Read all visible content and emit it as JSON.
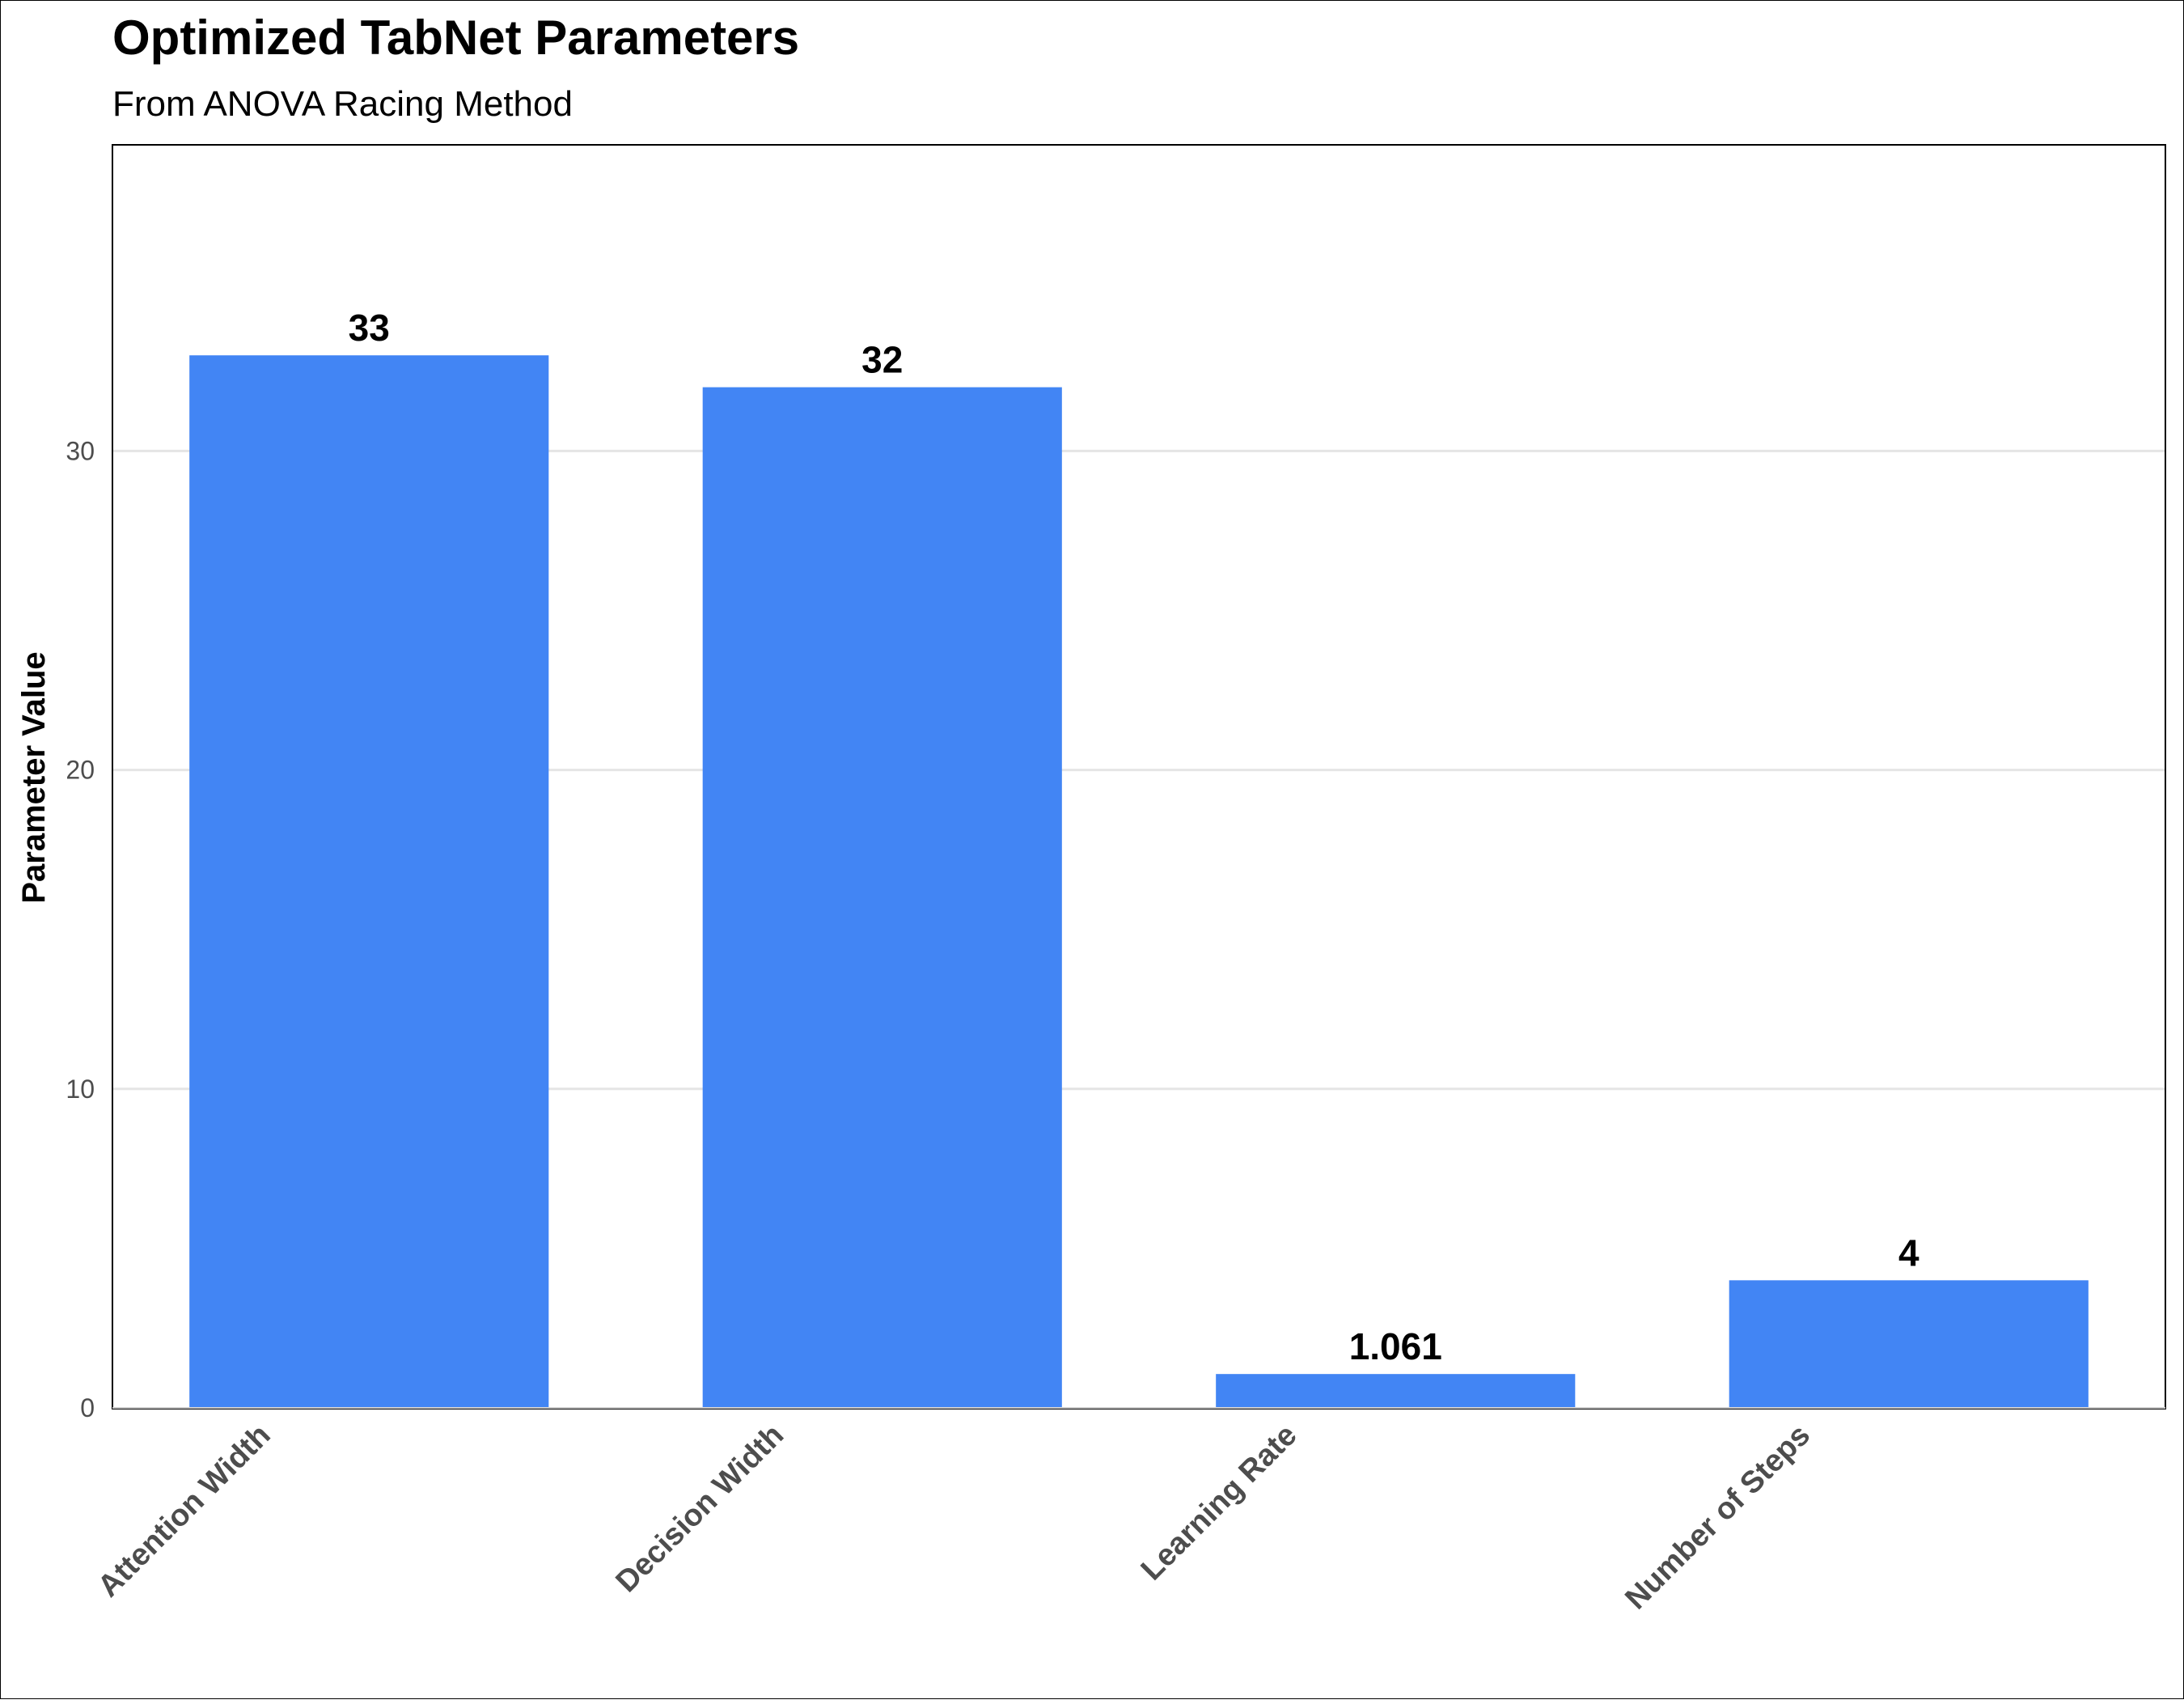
{
  "chart_data": {
    "type": "bar",
    "title": "Optimized TabNet Parameters",
    "subtitle": "From ANOVA Racing Method",
    "xlabel": "",
    "ylabel": "Parameter Value",
    "categories": [
      "Attention Width",
      "Decision Width",
      "Learning Rate",
      "Number of Steps"
    ],
    "values": [
      33,
      32,
      1.061,
      4
    ],
    "value_labels": [
      "33",
      "32",
      "1.061",
      "4"
    ],
    "yticks": [
      0,
      10,
      20,
      30
    ],
    "ytick_labels": [
      "0",
      "10",
      "20",
      "30"
    ],
    "ylim": [
      0,
      39.6
    ],
    "grid": "horizontal",
    "legend": "none",
    "colors": {
      "bar": "#4285F4",
      "grid": "#e5e5e5",
      "axis_text": "#4d4d4d",
      "text": "#000000"
    }
  }
}
